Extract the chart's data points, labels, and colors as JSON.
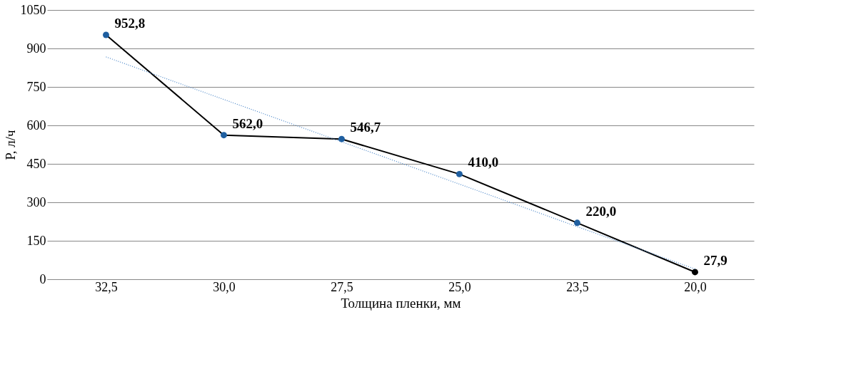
{
  "chart_data": {
    "type": "line",
    "xlabel": "Толщина пленки, мм",
    "ylabel": "P, л/ч",
    "categories": [
      "32,5",
      "30,0",
      "27,5",
      "25,0",
      "23,5",
      "20,0"
    ],
    "series": [
      {
        "color": "#000000",
        "colors": [
          "#1f5fa0",
          "#1f5fa0",
          "#1f5fa0",
          "#1f5fa0",
          "#1f5fa0",
          "#000000"
        ],
        "values": [
          952.8,
          562.0,
          546.7,
          410.0,
          220.0,
          27.9
        ],
        "value_labels": [
          "952,8",
          "562,0",
          "546,7",
          "410,0",
          "220,0",
          "27,9"
        ],
        "marker": "circle",
        "line_style": "solid"
      },
      {
        "type": "line",
        "color": "#4a86c8",
        "values": [
          867,
          701,
          536,
          371,
          205,
          40
        ],
        "marker": "none",
        "line_style": "dotted"
      }
    ],
    "ylim": [
      0,
      1050
    ],
    "yticks": [
      0,
      150,
      300,
      450,
      600,
      750,
      900,
      1050
    ],
    "grid": "y"
  }
}
